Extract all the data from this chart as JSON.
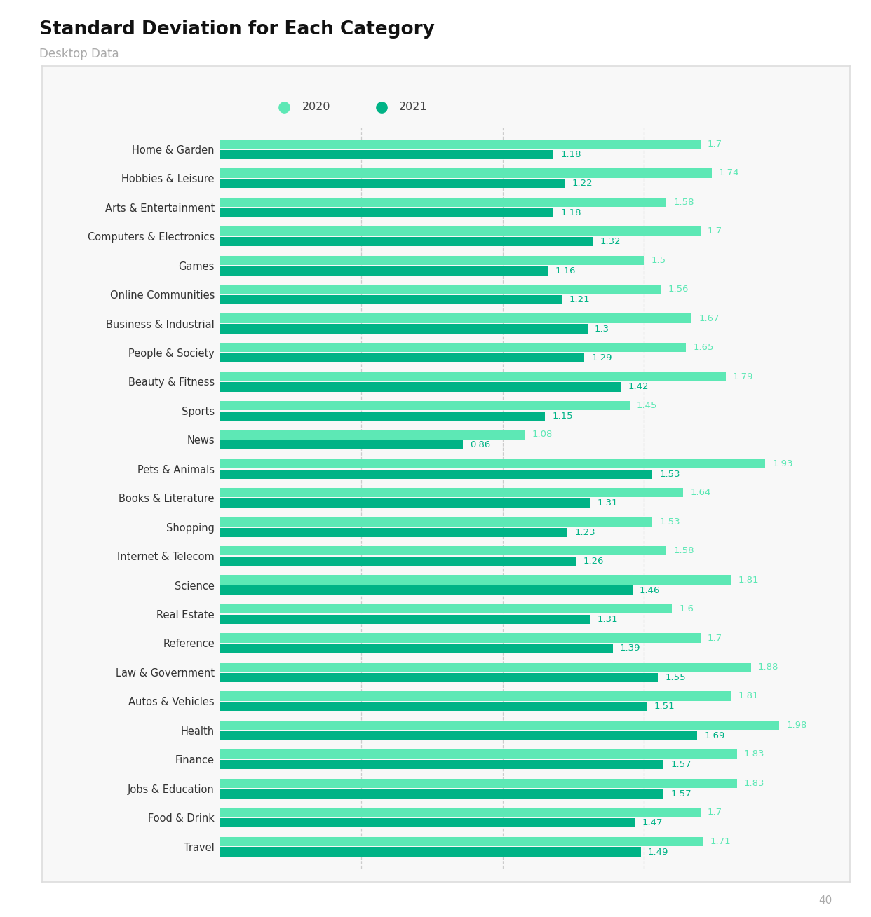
{
  "title": "Standard Deviation for Each Category",
  "subtitle": "Desktop Data",
  "page_number": "40",
  "categories": [
    "Home & Garden",
    "Hobbies & Leisure",
    "Arts & Entertainment",
    "Computers & Electronics",
    "Games",
    "Online Communities",
    "Business & Industrial",
    "People & Society",
    "Beauty & Fitness",
    "Sports",
    "News",
    "Pets & Animals",
    "Books & Literature",
    "Shopping",
    "Internet & Telecom",
    "Science",
    "Real Estate",
    "Reference",
    "Law & Government",
    "Autos & Vehicles",
    "Health",
    "Finance",
    "Jobs & Education",
    "Food & Drink",
    "Travel"
  ],
  "values_2020": [
    1.7,
    1.74,
    1.58,
    1.7,
    1.5,
    1.56,
    1.67,
    1.65,
    1.79,
    1.45,
    1.08,
    1.93,
    1.64,
    1.53,
    1.58,
    1.81,
    1.6,
    1.7,
    1.88,
    1.81,
    1.98,
    1.83,
    1.83,
    1.7,
    1.71
  ],
  "values_2021": [
    1.18,
    1.22,
    1.18,
    1.32,
    1.16,
    1.21,
    1.3,
    1.29,
    1.42,
    1.15,
    0.86,
    1.53,
    1.31,
    1.23,
    1.26,
    1.46,
    1.31,
    1.39,
    1.55,
    1.51,
    1.69,
    1.57,
    1.57,
    1.47,
    1.49
  ],
  "color_2020": "#5de8b5",
  "color_2021": "#00b386",
  "background_color": "#ffffff",
  "panel_color": "#f8f8f8",
  "bar_height": 0.32,
  "bar_gap": 0.04,
  "title_fontsize": 19,
  "subtitle_fontsize": 12,
  "label_fontsize": 9.5,
  "category_fontsize": 10.5,
  "legend_fontsize": 11.5,
  "vline_color": "#cccccc",
  "xlim": [
    0,
    2.2
  ],
  "vline_positions": [
    0.5,
    1.0,
    1.5
  ]
}
